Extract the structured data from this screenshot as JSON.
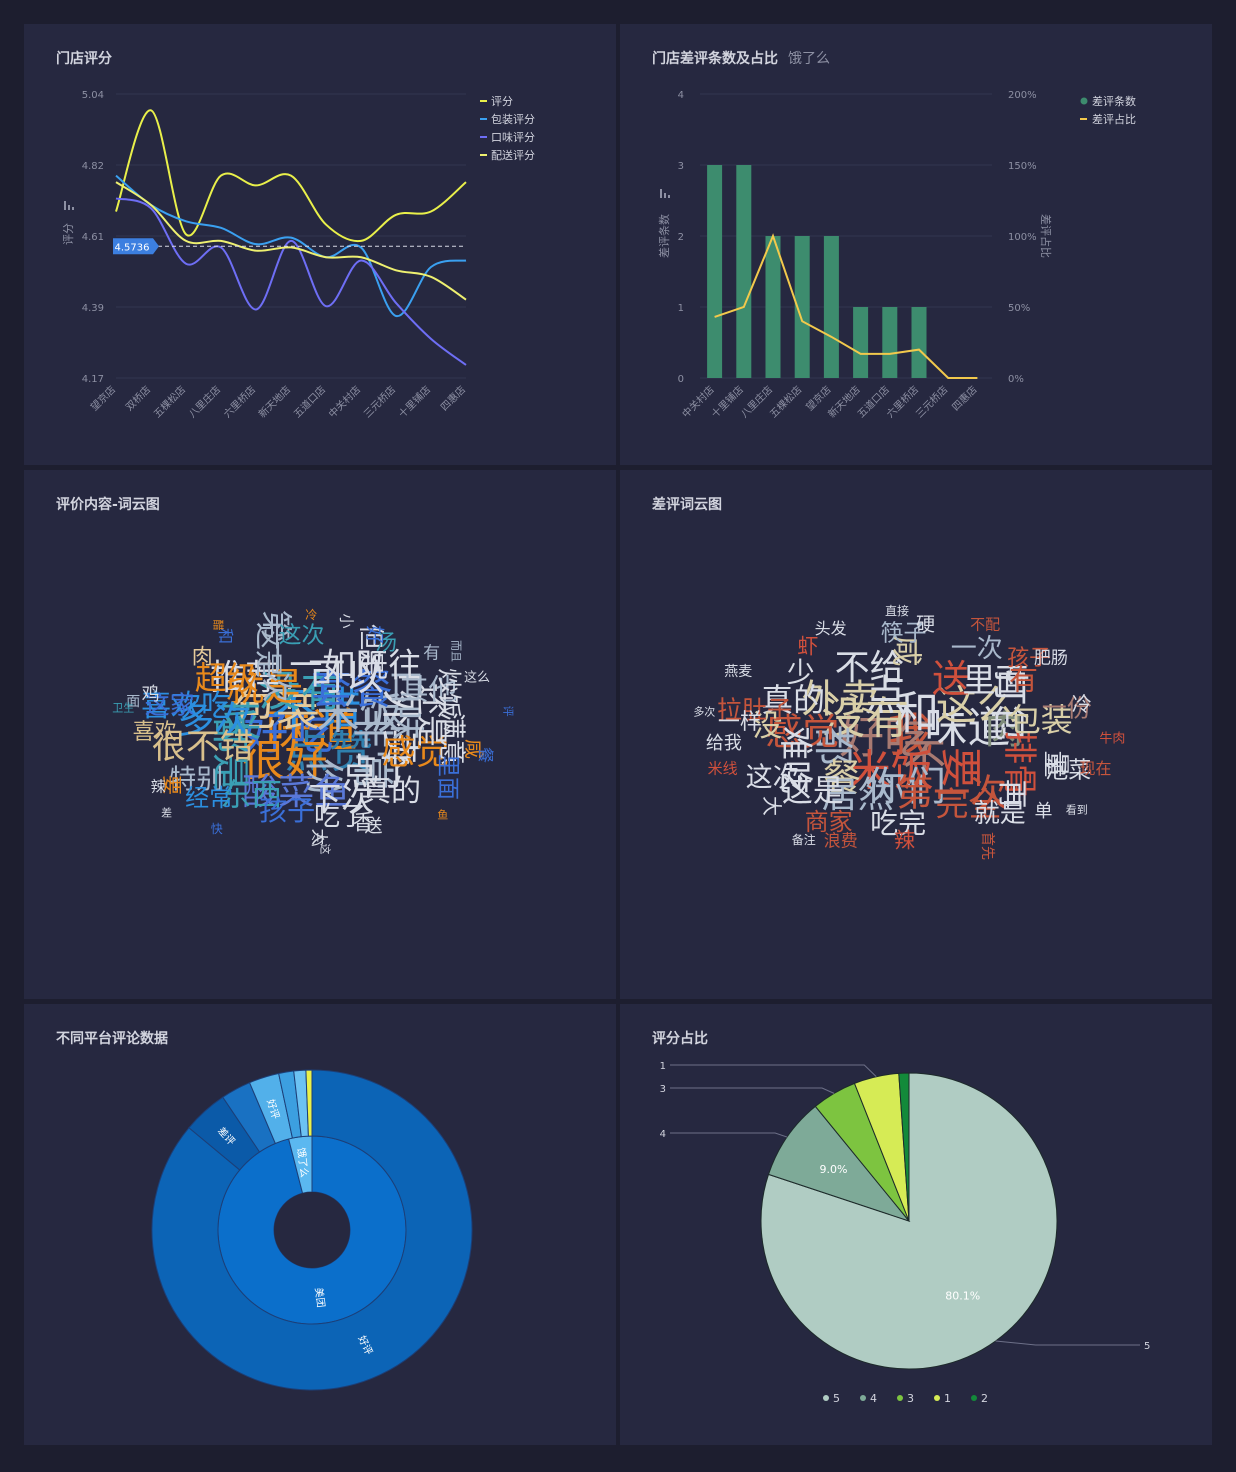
{
  "panels": {
    "store_rating": {
      "title": "门店评分"
    },
    "bad_review": {
      "title": "门店差评条数及占比",
      "subtitle": "饿了么"
    },
    "wordcloud_all": {
      "title": "评价内容-词云图"
    },
    "wordcloud_bad": {
      "title": "差评词云图"
    },
    "platform": {
      "title": "不同平台评论数据"
    },
    "rating_share": {
      "title": "评分占比"
    }
  },
  "chart_data": [
    {
      "id": "store_rating",
      "type": "line",
      "categories": [
        "望京店",
        "双桥店",
        "五棵松店",
        "八里庄店",
        "六里桥店",
        "新天地店",
        "五道口店",
        "中关村店",
        "三元桥店",
        "十里铺店",
        "四惠店"
      ],
      "ylabel": "评分",
      "yticks": [
        "5.04",
        "4.82",
        "4.61",
        "4.39",
        "4.17"
      ],
      "ylim": [
        4.17,
        5.04
      ],
      "reference_line": {
        "label": "4.5736",
        "value": 4.5736
      },
      "legend_position": "top-right",
      "series": [
        {
          "name": "评分",
          "color": "#e9f04a",
          "values": [
            4.68,
            4.99,
            4.61,
            4.79,
            4.76,
            4.79,
            4.64,
            4.59,
            4.67,
            4.68,
            4.77
          ]
        },
        {
          "name": "包装评分",
          "color": "#3aa0f0",
          "values": [
            4.79,
            4.7,
            4.65,
            4.63,
            4.58,
            4.6,
            4.54,
            4.57,
            4.36,
            4.51,
            4.53
          ]
        },
        {
          "name": "口味评分",
          "color": "#6e6ef5",
          "values": [
            4.72,
            4.69,
            4.52,
            4.57,
            4.38,
            4.59,
            4.39,
            4.53,
            4.4,
            4.29,
            4.21
          ]
        },
        {
          "name": "配送评分",
          "color": "#eef070",
          "values": [
            4.77,
            4.7,
            4.59,
            4.59,
            4.56,
            4.57,
            4.54,
            4.54,
            4.5,
            4.48,
            4.41
          ]
        }
      ]
    },
    {
      "id": "bad_review",
      "type": "bar",
      "categories": [
        "中关村店",
        "十里铺店",
        "八里庄店",
        "五棵松店",
        "望京店",
        "新天地店",
        "五道口店",
        "六里桥店",
        "三元桥店",
        "四惠店"
      ],
      "ylabel": "差评条数",
      "ylabel_right": "差评占比",
      "yticks": [
        "4",
        "3",
        "2",
        "1",
        "0"
      ],
      "yticks_right": [
        "200%",
        "150%",
        "100%",
        "50%",
        "0%"
      ],
      "ylim": [
        0,
        4
      ],
      "ylim_right": [
        0,
        200
      ],
      "legend_position": "top-right",
      "series": [
        {
          "name": "差评条数",
          "type": "bar",
          "color": "#3d8c6e",
          "values": [
            3,
            3,
            2,
            2,
            2,
            1,
            1,
            1,
            0,
            0
          ]
        },
        {
          "name": "差评占比",
          "type": "line",
          "color": "#f2c94c",
          "values": [
            43,
            50,
            100,
            40,
            29,
            17,
            17,
            20,
            0,
            0
          ]
        }
      ]
    },
    {
      "id": "platform",
      "type": "pie",
      "inner": [
        {
          "label": "美团",
          "value": 96,
          "color": "#0b6fcb"
        },
        {
          "label": "饿了么",
          "value": 4,
          "color": "#5bb8f0"
        }
      ],
      "outer": [
        {
          "label": "好评",
          "value": 85,
          "color": "#0c64b6"
        },
        {
          "label": "差评",
          "value": 4.5,
          "color": "#0b5aa8"
        },
        {
          "label": "",
          "value": 3,
          "color": "#1971c2"
        },
        {
          "label": "好评",
          "value": 3,
          "color": "#52b0ea"
        },
        {
          "label": "",
          "value": 1.5,
          "color": "#3c9fe0"
        },
        {
          "label": "",
          "value": 1.2,
          "color": "#6cc2f3"
        },
        {
          "label": "",
          "value": 0.6,
          "color": "#e9f04a"
        }
      ]
    },
    {
      "id": "rating_share",
      "type": "pie",
      "legend_position": "bottom",
      "slices": [
        {
          "label": "5",
          "value": 80.1,
          "color": "#b0ccc3",
          "pct_label": "80.1%"
        },
        {
          "label": "4",
          "value": 9.0,
          "color": "#7eaa98",
          "pct_label": "9.0%"
        },
        {
          "label": "3",
          "value": 4.9,
          "color": "#7dc440",
          "pct_label": ""
        },
        {
          "label": "1",
          "value": 4.9,
          "color": "#d6eb55",
          "pct_label": ""
        },
        {
          "label": "2",
          "value": 1.1,
          "color": "#138a3a",
          "pct_label": ""
        }
      ]
    }
  ],
  "wordclouds": {
    "all": [
      [
        "味道",
        "#e8891b"
      ],
      [
        "好吃",
        "#3a6fd8"
      ],
      [
        "不错",
        "#2b8fe0"
      ],
      [
        "点赞",
        "#2f7fae"
      ],
      [
        "包装",
        "#e6cb9a"
      ],
      [
        "米饭",
        "#a9b9cc"
      ],
      [
        "很好",
        "#e8891b"
      ],
      [
        "没有",
        "#3a9fb4"
      ],
      [
        "非常",
        "#a9b9cc"
      ],
      [
        "菜",
        "#3a9fb4"
      ],
      [
        "套餐",
        "#3a6fd8"
      ],
      [
        "份",
        "#a9b9cc"
      ],
      [
        "就是",
        "#e8891b"
      ],
      [
        "外卖",
        "#d9dde6"
      ],
      [
        "都是",
        "#3a9fb4"
      ],
      [
        "可以",
        "#d9dde6"
      ],
      [
        "点了",
        "#d9dde6"
      ],
      [
        "多次",
        "#2b8fe0"
      ],
      [
        "口味",
        "#a9b9cc"
      ],
      [
        "酸菜鱼",
        "#5a78d8"
      ],
      [
        "推荐",
        "#d9dde6"
      ],
      [
        "感觉",
        "#e8891b"
      ],
      [
        "很不错",
        "#d9c08c"
      ],
      [
        "一如既往",
        "#d9dde6"
      ],
      [
        "下次",
        "#d9dde6"
      ],
      [
        "超级",
        "#e8891b"
      ],
      [
        "还是",
        "#d9dde6"
      ],
      [
        "东西",
        "#3a9fb4"
      ],
      [
        "第一次",
        "#a9b9cc"
      ],
      [
        "真的",
        "#d9dde6"
      ],
      [
        "喜欢吃",
        "#2b8fe0"
      ],
      [
        "其他",
        "#a9b9cc"
      ],
      [
        "孩子",
        "#3a6fd8"
      ],
      [
        "这是",
        "#a9b9cc"
      ],
      [
        "满意",
        "#d9dde6"
      ],
      [
        "特别",
        "#a9b9cc"
      ],
      [
        "但是",
        "#d9dde6"
      ],
      [
        "吃了",
        "#d9dde6"
      ],
      [
        "这家",
        "#3a6fd8"
      ],
      [
        "炒饭",
        "#d9dde6"
      ],
      [
        "经常",
        "#2b8fe0"
      ],
      [
        "这次",
        "#3a9fb4"
      ],
      [
        "里面",
        "#3a6fd8"
      ],
      [
        "喜欢",
        "#d9c08c"
      ],
      [
        "汤",
        "#3a9fb4"
      ],
      [
        "香",
        "#d9dde6"
      ],
      [
        "肉",
        "#e6cb9a"
      ],
      [
        "咸",
        "#e8891b"
      ],
      [
        "要",
        "#e8891b"
      ],
      [
        "好",
        "#3a6fd8"
      ],
      [
        "送",
        "#d9dde6"
      ],
      [
        "鸡",
        "#d9dde6"
      ],
      [
        "有",
        "#a9b9cc"
      ],
      [
        "大",
        "#d9dde6"
      ],
      [
        "和",
        "#3a6fd8"
      ],
      [
        "餐",
        "#3a6fd8"
      ],
      [
        "辣",
        "#d9dde6"
      ],
      [
        "小",
        "#d9dde6"
      ],
      [
        "少",
        "#d9dde6"
      ],
      [
        "面",
        "#a9b9cc"
      ],
      [
        "这么",
        "#d9dde6"
      ],
      [
        "快",
        "#3a6fd8"
      ],
      [
        "冷",
        "#e8891b"
      ],
      [
        "鱼",
        "#e8891b"
      ],
      [
        "卫生",
        "#3a9fb4"
      ],
      [
        "而且",
        "#a9b9cc"
      ],
      [
        "这",
        "#d9dde6"
      ],
      [
        "醋",
        "#e8891b"
      ],
      [
        "评",
        "#3a6fd8"
      ],
      [
        "差",
        "#d9dde6"
      ]
    ],
    "bad": [
      [
        "我",
        "#c5553c"
      ],
      [
        "好吃",
        "#a87a72"
      ],
      [
        "和",
        "#d9dde6"
      ],
      [
        "不",
        "#a87a72"
      ],
      [
        "没有",
        "#d9cfa8"
      ],
      [
        "味道",
        "#d9dde6"
      ],
      [
        "米饭",
        "#d0503c"
      ],
      [
        "点",
        "#d9dde6"
      ],
      [
        "要",
        "#d0503c"
      ],
      [
        "都",
        "#a9b9cc"
      ],
      [
        "这么",
        "#d9cfa8"
      ],
      [
        "你们",
        "#a9b9cc"
      ],
      [
        "外卖",
        "#d9cfa8"
      ],
      [
        "肉",
        "#7f8c7a"
      ],
      [
        "餐",
        "#d9cfa8"
      ],
      [
        "送",
        "#d0503c"
      ],
      [
        "第一次",
        "#c5553c"
      ],
      [
        "感觉",
        "#c5553c"
      ],
      [
        "打包",
        "#d9dde6"
      ],
      [
        "居然",
        "#a9b9cc"
      ],
      [
        "不给",
        "#d9dde6"
      ],
      [
        "排骨",
        "#d0503c"
      ],
      [
        "难吃",
        "#d9dde6"
      ],
      [
        "里面",
        "#d9dde6"
      ],
      [
        "完全",
        "#c5553c"
      ],
      [
        "真的",
        "#d9dde6"
      ],
      [
        "包装",
        "#d9cfa8"
      ],
      [
        "这是",
        "#d9dde6"
      ],
      [
        "咸",
        "#d9cfa8"
      ],
      [
        "再",
        "#d9dde6"
      ],
      [
        "没",
        "#d9cfa8"
      ],
      [
        "有",
        "#c5553c"
      ],
      [
        "吃完",
        "#d9dde6"
      ],
      [
        "少",
        "#d9dde6"
      ],
      [
        "量",
        "#d9dde6"
      ],
      [
        "这次",
        "#d9dde6"
      ],
      [
        "一次",
        "#a9b9cc"
      ],
      [
        "就是",
        "#d9dde6"
      ],
      [
        "拉肚子",
        "#c5553c"
      ],
      [
        "一份",
        "#a87a72"
      ],
      [
        "商家",
        "#c5553c"
      ],
      [
        "筷子",
        "#a9b9cc"
      ],
      [
        "泡菜",
        "#d9dde6"
      ],
      [
        "一样",
        "#d9dde6"
      ],
      [
        "孩子",
        "#c5553c"
      ],
      [
        "辣",
        "#d0503c"
      ],
      [
        "虾",
        "#d0503c"
      ],
      [
        "冷",
        "#d9dde6"
      ],
      [
        "大",
        "#d9dde6"
      ],
      [
        "硬",
        "#d9dde6"
      ],
      [
        "单",
        "#d9dde6"
      ],
      [
        "给我",
        "#d9dde6"
      ],
      [
        "肥肠",
        "#d9dde6"
      ],
      [
        "浪费",
        "#c5553c"
      ],
      [
        "头发",
        "#d9dde6"
      ],
      [
        "现在",
        "#c5553c"
      ],
      [
        "米线",
        "#d0503c"
      ],
      [
        "不配",
        "#c5553c"
      ],
      [
        "首先",
        "#c5553c"
      ],
      [
        "燕麦",
        "#d9dde6"
      ],
      [
        "牛肉",
        "#d0503c"
      ],
      [
        "备注",
        "#d9dde6"
      ],
      [
        "直接",
        "#d9dde6"
      ],
      [
        "看到",
        "#d9dde6"
      ],
      [
        "多次",
        "#d9dde6"
      ]
    ]
  }
}
